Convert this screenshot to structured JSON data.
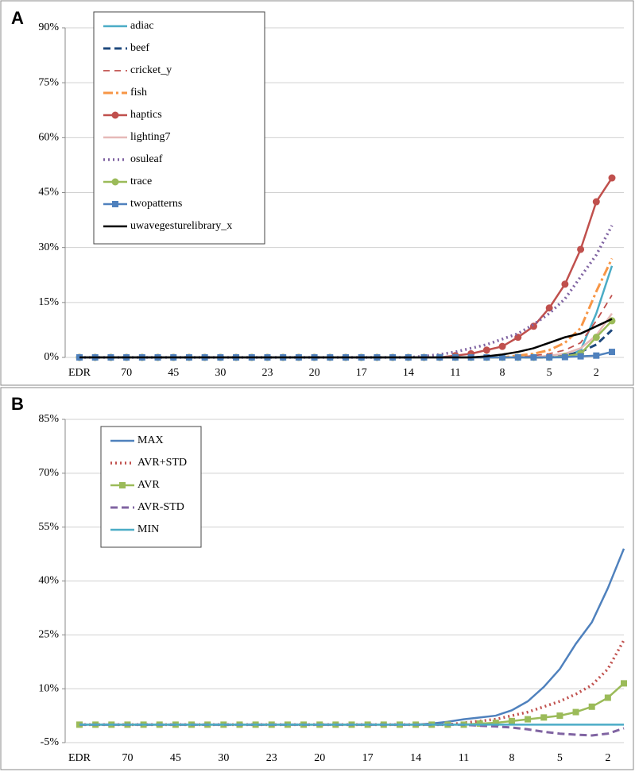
{
  "chart_data": [
    {
      "type": "line",
      "panel_label": "A",
      "categories": [
        "EDR",
        null,
        null,
        "70",
        null,
        null,
        "45",
        null,
        null,
        "30",
        null,
        null,
        "23",
        null,
        null,
        "20",
        null,
        null,
        "17",
        null,
        null,
        "14",
        null,
        null,
        "11",
        null,
        null,
        "8",
        null,
        null,
        "5",
        null,
        null,
        "2",
        null
      ],
      "ylim": [
        0,
        90
      ],
      "yticks": [
        {
          "value": 0,
          "label": "0%"
        },
        {
          "value": 15,
          "label": "15%"
        },
        {
          "value": 30,
          "label": "30%"
        },
        {
          "value": 45,
          "label": "45%"
        },
        {
          "value": 60,
          "label": "60%"
        },
        {
          "value": 75,
          "label": "75%"
        },
        {
          "value": 90,
          "label": "90%"
        }
      ],
      "grid": true,
      "legend": "upper left",
      "series": [
        {
          "name": "adiac",
          "color": "#4bacc6",
          "style": "solid",
          "values": [
            0,
            0,
            0,
            0,
            0,
            0,
            0,
            0,
            0,
            0,
            0,
            0,
            0,
            0,
            0,
            0,
            0,
            0,
            0,
            0,
            0,
            0,
            0,
            0,
            0,
            0,
            0,
            0,
            0,
            0,
            0,
            0,
            2,
            12,
            25
          ]
        },
        {
          "name": "beef",
          "color": "#1f497d",
          "style": "dashed",
          "values": [
            0,
            0,
            0,
            0,
            0,
            0,
            0,
            0,
            0,
            0,
            0,
            0,
            0,
            0,
            0,
            0,
            0,
            0,
            0,
            0,
            0,
            0,
            0,
            0,
            0,
            0,
            0,
            0,
            0,
            0,
            0,
            0.5,
            1.5,
            3.5,
            7.5
          ]
        },
        {
          "name": "cricket_y",
          "color": "#c0504d",
          "style": "thin-dashed",
          "values": [
            0,
            0,
            0,
            0,
            0,
            0,
            0,
            0,
            0,
            0,
            0,
            0,
            0,
            0,
            0,
            0,
            0,
            0,
            0,
            0,
            0,
            0,
            0,
            0,
            0,
            0,
            0,
            0,
            0,
            0.5,
            1,
            2,
            4,
            10,
            17
          ]
        },
        {
          "name": "fish",
          "color": "#f79646",
          "style": "dashdot",
          "values": [
            0,
            0,
            0,
            0,
            0,
            0,
            0,
            0,
            0,
            0,
            0,
            0,
            0,
            0,
            0,
            0,
            0,
            0,
            0,
            0,
            0,
            0,
            0,
            0,
            0,
            0,
            0,
            0,
            0.5,
            1,
            2,
            4,
            8,
            18,
            27
          ]
        },
        {
          "name": "haptics",
          "color": "#c0504d",
          "style": "solid",
          "marker": "circle",
          "values": [
            0,
            0,
            0,
            0,
            0,
            0,
            0,
            0,
            0,
            0,
            0,
            0,
            0,
            0,
            0,
            0,
            0,
            0,
            0,
            0,
            0,
            0,
            0,
            0,
            0.5,
            1,
            2,
            3,
            5.5,
            8.5,
            13.5,
            20,
            29.5,
            42.5,
            49
          ]
        },
        {
          "name": "lighting7",
          "color": "#e6b9b8",
          "style": "solid",
          "values": [
            0,
            0,
            0,
            0,
            0,
            0,
            0,
            0,
            0,
            0,
            0,
            0,
            0,
            0,
            0,
            0,
            0,
            0,
            0,
            0,
            0,
            0,
            0,
            0,
            0,
            0,
            0,
            0,
            0,
            0,
            0.5,
            1,
            2.5,
            6,
            12
          ]
        },
        {
          "name": "osuleaf",
          "color": "#8064a2",
          "style": "dotted",
          "values": [
            0,
            0,
            0,
            0,
            0,
            0,
            0,
            0,
            0,
            0,
            0,
            0,
            0,
            0,
            0,
            0,
            0,
            0,
            0,
            0,
            0,
            0,
            0.3,
            0.8,
            1.5,
            2.5,
            3.5,
            5,
            6.5,
            9,
            12,
            16,
            22,
            28,
            36
          ]
        },
        {
          "name": "trace",
          "color": "#9bbb59",
          "style": "solid",
          "marker": "circle",
          "values": [
            0,
            0,
            0,
            0,
            0,
            0,
            0,
            0,
            0,
            0,
            0,
            0,
            0,
            0,
            0,
            0,
            0,
            0,
            0,
            0,
            0,
            0,
            0,
            0,
            0,
            0,
            0,
            0,
            0,
            0,
            0,
            0.3,
            1,
            5.5,
            10
          ]
        },
        {
          "name": "twopatterns",
          "color": "#4f81bd",
          "style": "solid",
          "marker": "square",
          "values": [
            0,
            0,
            0,
            0,
            0,
            0,
            0,
            0,
            0,
            0,
            0,
            0,
            0,
            0,
            0,
            0,
            0,
            0,
            0,
            0,
            0,
            0,
            0,
            0,
            0,
            0,
            0,
            0,
            0,
            0,
            0,
            0.1,
            0.3,
            0.5,
            1.5
          ]
        },
        {
          "name": "uwavegesturelibrary_x",
          "color": "#000000",
          "style": "solid",
          "values": [
            0,
            0,
            0,
            0,
            0,
            0,
            0,
            0,
            0,
            0,
            0,
            0,
            0,
            0,
            0,
            0,
            0,
            0,
            0,
            0,
            0,
            0,
            0,
            0,
            0,
            0,
            0.3,
            0.8,
            1.5,
            2.5,
            4,
            5.5,
            6.5,
            8.5,
            10.5
          ]
        }
      ]
    },
    {
      "type": "line",
      "panel_label": "B",
      "categories": [
        "EDR",
        null,
        null,
        "70",
        null,
        null,
        "45",
        null,
        null,
        "30",
        null,
        null,
        "23",
        null,
        null,
        "20",
        null,
        null,
        "17",
        null,
        null,
        "14",
        null,
        null,
        "11",
        null,
        null,
        "8",
        null,
        null,
        "5",
        null,
        null,
        "2",
        null
      ],
      "ylim": [
        -5,
        85
      ],
      "yticks": [
        {
          "value": -5,
          "label": "-5%"
        },
        {
          "value": 10,
          "label": "10%"
        },
        {
          "value": 25,
          "label": "25%"
        },
        {
          "value": 40,
          "label": "40%"
        },
        {
          "value": 55,
          "label": "55%"
        },
        {
          "value": 70,
          "label": "70%"
        },
        {
          "value": 85,
          "label": "85%"
        }
      ],
      "grid": true,
      "legend": "upper left",
      "series": [
        {
          "name": "MAX",
          "color": "#4f81bd",
          "style": "solid",
          "values": [
            0,
            0,
            0,
            0,
            0,
            0,
            0,
            0,
            0,
            0,
            0,
            0,
            0,
            0,
            0,
            0,
            0,
            0,
            0,
            0,
            0,
            0,
            0.3,
            0.8,
            1.5,
            2,
            2.5,
            4,
            6.5,
            10.5,
            15.5,
            22.5,
            28.5,
            38,
            49
          ]
        },
        {
          "name": "AVR+STD",
          "color": "#c0504d",
          "style": "dotted",
          "values": [
            0,
            0,
            0,
            0,
            0,
            0,
            0,
            0,
            0,
            0,
            0,
            0,
            0,
            0,
            0,
            0,
            0,
            0,
            0,
            0,
            0,
            0,
            0,
            0,
            0.5,
            1,
            1.5,
            2.5,
            3.5,
            5,
            6.5,
            8.5,
            11,
            15.5,
            23.5
          ]
        },
        {
          "name": "AVR",
          "color": "#9bbb59",
          "style": "solid",
          "marker": "square",
          "values": [
            0,
            0,
            0,
            0,
            0,
            0,
            0,
            0,
            0,
            0,
            0,
            0,
            0,
            0,
            0,
            0,
            0,
            0,
            0,
            0,
            0,
            0,
            0,
            0,
            0,
            0.3,
            0.5,
            1,
            1.5,
            2,
            2.5,
            3.5,
            5,
            7.5,
            11.5
          ]
        },
        {
          "name": "AVR-STD",
          "color": "#8064a2",
          "style": "dashed",
          "values": [
            0,
            0,
            0,
            0,
            0,
            0,
            0,
            0,
            0,
            0,
            0,
            0,
            0,
            0,
            0,
            0,
            0,
            0,
            0,
            0,
            0,
            0,
            0,
            0,
            0,
            -0.3,
            -0.5,
            -0.8,
            -1.3,
            -2,
            -2.5,
            -2.8,
            -3,
            -2.5,
            -1
          ]
        },
        {
          "name": "MIN",
          "color": "#4bacc6",
          "style": "solid",
          "values": [
            0,
            0,
            0,
            0,
            0,
            0,
            0,
            0,
            0,
            0,
            0,
            0,
            0,
            0,
            0,
            0,
            0,
            0,
            0,
            0,
            0,
            0,
            0,
            0,
            0,
            0,
            0,
            0,
            0,
            0,
            0,
            0,
            0,
            0,
            0
          ]
        }
      ]
    }
  ]
}
